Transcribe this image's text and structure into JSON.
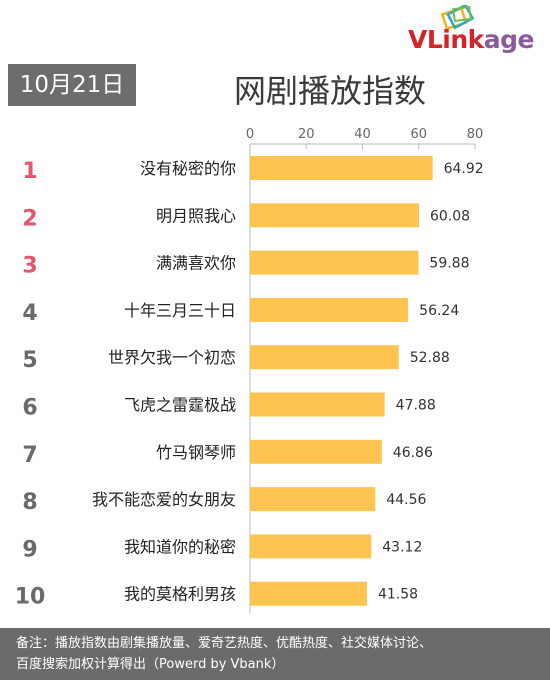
{
  "brand": {
    "logo_text_prefix": "VLink",
    "logo_text_suffix": "age",
    "logo_color": "#d5232a",
    "logo_suffix_color": "#8a5a9e"
  },
  "header": {
    "date": "10月21日",
    "title": "网剧播放指数"
  },
  "colors": {
    "bar": "#fec44f",
    "rank_top3": "#e8556a",
    "rank_other": "#6a6a6a",
    "date_badge": "#6d6d6d",
    "footer": "#6b6b6b"
  },
  "chart_data": {
    "type": "bar",
    "orientation": "horizontal",
    "title": "网剧播放指数",
    "xlim": [
      0,
      80
    ],
    "xticks": [
      "0",
      "20",
      "40",
      "60",
      "80"
    ],
    "ranks": [
      "1",
      "2",
      "3",
      "4",
      "5",
      "6",
      "7",
      "8",
      "9",
      "10"
    ],
    "categories": [
      "没有秘密的你",
      "明月照我心",
      "满满喜欢你",
      "十年三月三十日",
      "世界欠我一个初恋",
      "飞虎之雷霆极战",
      "竹马钢琴师",
      "我不能恋爱的女朋友",
      "我知道你的秘密",
      "我的莫格利男孩"
    ],
    "values": [
      64.92,
      60.08,
      59.88,
      56.24,
      52.88,
      47.88,
      46.86,
      44.56,
      43.12,
      41.58
    ],
    "value_labels": [
      "64.92",
      "60.08",
      "59.88",
      "56.24",
      "52.88",
      "47.88",
      "46.86",
      "44.56",
      "43.12",
      "41.58"
    ],
    "grid": false,
    "legend": "none"
  },
  "footer": {
    "line1": "备注：播放指数由剧集播放量、爱奇艺热度、优酷热度、社交媒体讨论、",
    "line2": "百度搜索加权计算得出（Powerd by Vbank）"
  }
}
